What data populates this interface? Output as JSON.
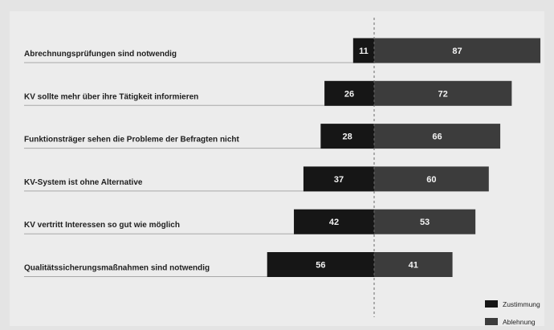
{
  "chart_data": {
    "type": "bar",
    "orientation": "horizontal-diverging",
    "title": "",
    "xlabel": "",
    "ylabel": "",
    "categories": [
      "Abrechnungsprüfungen sind notwendig",
      "KV sollte mehr über ihre Tätigkeit informieren",
      "Funktionsträger sehen die Probleme der Befragten nicht",
      "KV-System ist ohne Alternative",
      "KV vertritt Interessen so gut wie möglich",
      "Qualitätssicherungsmaßnahmen sind notwendig"
    ],
    "series": [
      {
        "name": "Zustimmung",
        "values": [
          11,
          26,
          28,
          37,
          42,
          56
        ],
        "direction": "left",
        "color": "#161616"
      },
      {
        "name": "Ablehnung",
        "values": [
          87,
          72,
          66,
          60,
          53,
          41
        ],
        "direction": "right",
        "color": "#3c3c3c"
      }
    ],
    "xlim": [
      -100,
      100
    ],
    "center_line": true,
    "grid": false,
    "legend": "bottom-right",
    "colors": {
      "background": "#e4e4e4",
      "plot_background": "#ececec",
      "text": "#1e1e1e",
      "bar_text": "#f2f2f2"
    }
  }
}
